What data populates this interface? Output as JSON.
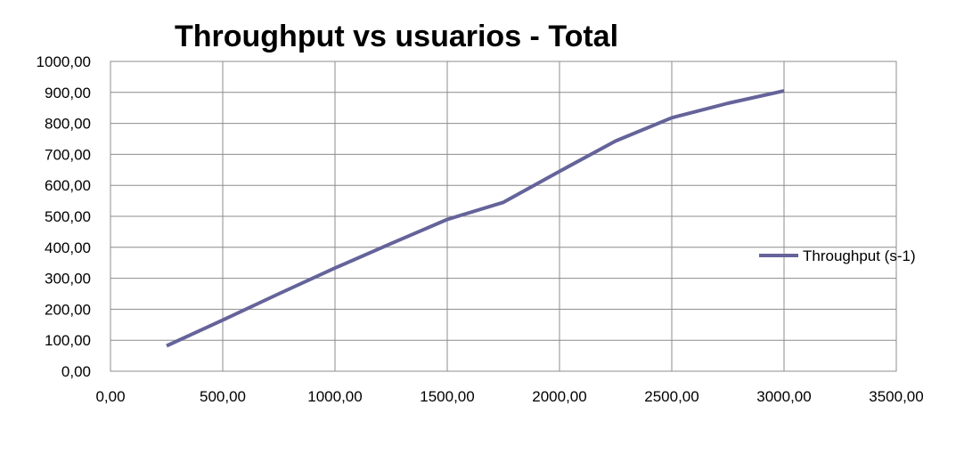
{
  "chart_data": {
    "type": "line",
    "title": "Throughput vs usuarios - Total",
    "xlabel": "",
    "ylabel": "",
    "xlim": [
      0,
      3500
    ],
    "ylim": [
      0,
      1000
    ],
    "x_ticks": [
      0,
      500,
      1000,
      1500,
      2000,
      2500,
      3000,
      3500
    ],
    "y_ticks": [
      0,
      100,
      200,
      300,
      400,
      500,
      600,
      700,
      800,
      900,
      1000
    ],
    "x_tick_labels": [
      "0,00",
      "500,00",
      "1000,00",
      "1500,00",
      "2000,00",
      "2500,00",
      "3000,00",
      "3500,00"
    ],
    "y_tick_labels": [
      "0,00",
      "100,00",
      "200,00",
      "300,00",
      "400,00",
      "500,00",
      "600,00",
      "700,00",
      "800,00",
      "900,00",
      "1000,00"
    ],
    "grid": true,
    "legend_position": "right",
    "series": [
      {
        "name": "Throughput (s-1)",
        "color": "#65639a",
        "x": [
          250,
          500,
          750,
          1000,
          1250,
          1500,
          1750,
          2000,
          2250,
          2500,
          2750,
          3000
        ],
        "y": [
          82,
          165,
          250,
          333,
          412,
          490,
          545,
          645,
          743,
          818,
          865,
          905
        ]
      }
    ]
  }
}
